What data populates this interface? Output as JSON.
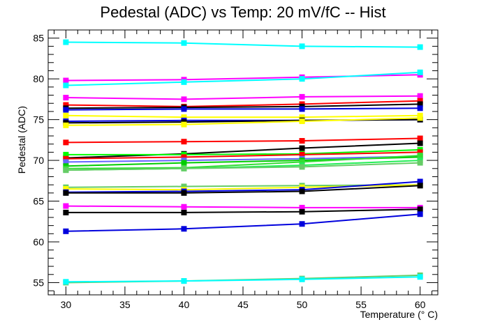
{
  "chart_data": {
    "type": "line",
    "title": "Pedestal (ADC) vs Temp: 20 mV/fC -- Hist",
    "xlabel": "Temperature (° C)",
    "ylabel": "Pedestal (ADC)",
    "xlim": [
      28.5,
      61.5
    ],
    "ylim": [
      53.5,
      86.0
    ],
    "x_ticks": [
      "30",
      "35",
      "40",
      "45",
      "50",
      "55",
      "60"
    ],
    "y_ticks": [
      "55",
      "60",
      "65",
      "70",
      "75",
      "80",
      "85"
    ],
    "grid": false,
    "legend": "none",
    "x": [
      30,
      40,
      50,
      60
    ],
    "series": [
      {
        "color": "#00ffff",
        "values": [
          84.5,
          84.4,
          84.0,
          83.9
        ]
      },
      {
        "color": "#ff00ff",
        "values": [
          79.8,
          79.9,
          80.2,
          80.5
        ]
      },
      {
        "color": "#00ffff",
        "values": [
          79.2,
          79.6,
          80.0,
          80.8
        ]
      },
      {
        "color": "#ff00ff",
        "values": [
          77.7,
          77.5,
          77.8,
          77.9
        ]
      },
      {
        "color": "#ff0000",
        "values": [
          76.8,
          76.6,
          76.9,
          77.3
        ]
      },
      {
        "color": "#000000",
        "values": [
          76.4,
          76.5,
          76.6,
          76.9
        ]
      },
      {
        "color": "#0000dd",
        "values": [
          76.2,
          76.3,
          76.3,
          76.4
        ]
      },
      {
        "color": "#ffff00",
        "values": [
          75.5,
          75.3,
          75.3,
          75.5
        ]
      },
      {
        "color": "#0000dd",
        "values": [
          74.8,
          74.9,
          74.9,
          75.0
        ]
      },
      {
        "color": "#000000",
        "values": [
          74.6,
          74.7,
          74.9,
          75.0
        ]
      },
      {
        "color": "#ffff00",
        "values": [
          74.3,
          74.4,
          74.8,
          75.2
        ]
      },
      {
        "color": "#ff0000",
        "values": [
          72.2,
          72.3,
          72.4,
          72.7
        ]
      },
      {
        "color": "#000000",
        "values": [
          70.3,
          70.8,
          71.5,
          72.1
        ]
      },
      {
        "color": "#00ff00",
        "values": [
          70.7,
          70.7,
          70.8,
          71.3
        ]
      },
      {
        "color": "#ff0000",
        "values": [
          70.2,
          70.4,
          70.7,
          71.0
        ]
      },
      {
        "color": "#6666ff",
        "values": [
          69.8,
          70.0,
          70.2,
          70.5
        ]
      },
      {
        "color": "#00cc00",
        "values": [
          69.3,
          69.7,
          70.0,
          70.4
        ]
      },
      {
        "color": "#33dd33",
        "values": [
          69.0,
          69.1,
          69.8,
          70.6
        ]
      },
      {
        "color": "#22ee55",
        "values": [
          68.8,
          69.0,
          69.4,
          70.0
        ]
      },
      {
        "color": "#66cc66",
        "values": [
          68.8,
          69.0,
          69.2,
          69.7
        ]
      },
      {
        "color": "#66cc66",
        "values": [
          66.7,
          66.8,
          66.9,
          67.0
        ]
      },
      {
        "color": "#ffff00",
        "values": [
          66.5,
          66.4,
          66.7,
          67.0
        ]
      },
      {
        "color": "#0000dd",
        "values": [
          66.1,
          66.2,
          66.4,
          67.4
        ]
      },
      {
        "color": "#000000",
        "values": [
          66.0,
          66.0,
          66.2,
          66.9
        ]
      },
      {
        "color": "#ff00ff",
        "values": [
          64.4,
          64.3,
          64.2,
          64.2
        ]
      },
      {
        "color": "#000000",
        "values": [
          63.6,
          63.6,
          63.7,
          64.0
        ]
      },
      {
        "color": "#0000dd",
        "values": [
          61.3,
          61.6,
          62.2,
          63.4
        ]
      },
      {
        "color": "#66cc66",
        "values": [
          55.0,
          55.2,
          55.5,
          55.9
        ]
      },
      {
        "color": "#00ffff",
        "values": [
          55.1,
          55.2,
          55.4,
          55.7
        ]
      }
    ]
  }
}
